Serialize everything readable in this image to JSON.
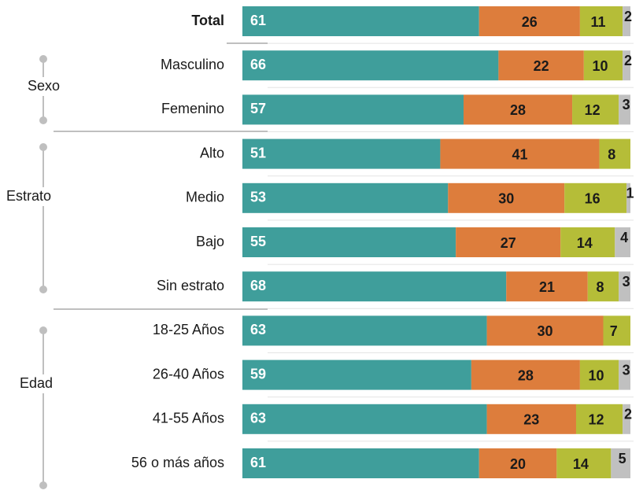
{
  "chart_data": {
    "type": "stacked-bar",
    "categories": [
      "Total",
      "Masculino",
      "Femenino",
      "Alto",
      "Medio",
      "Bajo",
      "Sin estrato",
      "18-25 Años",
      "26-40 Años",
      "41-55 Años",
      "56 o más años"
    ],
    "groups": [
      "Sexo",
      "Estrato",
      "Edad"
    ],
    "series": [
      {
        "color": "#3f9e9b",
        "values": [
          61,
          66,
          57,
          51,
          53,
          55,
          68,
          63,
          59,
          63,
          61
        ]
      },
      {
        "color": "#dd7d3c",
        "values": [
          26,
          22,
          28,
          41,
          30,
          27,
          21,
          30,
          28,
          23,
          20
        ]
      },
      {
        "color": "#b5bd38",
        "values": [
          11,
          10,
          12,
          8,
          16,
          14,
          8,
          7,
          10,
          12,
          14
        ]
      },
      {
        "color": "#c0c0c0",
        "values": [
          2,
          2,
          3,
          null,
          1,
          4,
          3,
          null,
          3,
          2,
          5
        ]
      }
    ]
  }
}
